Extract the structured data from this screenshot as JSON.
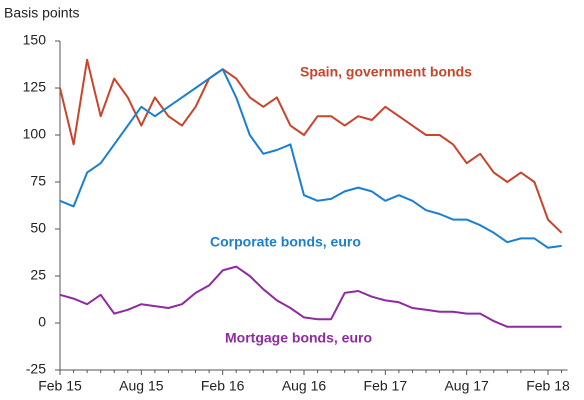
{
  "chart_data": {
    "type": "line",
    "y_label": "Basis points",
    "categories": [
      "Feb 15",
      null,
      null,
      null,
      null,
      null,
      "Aug 15",
      null,
      null,
      null,
      null,
      null,
      "Feb 16",
      null,
      null,
      null,
      null,
      null,
      "Aug 16",
      null,
      null,
      null,
      null,
      null,
      "Feb 17",
      null,
      null,
      null,
      null,
      null,
      "Aug 17",
      null,
      null,
      null,
      null,
      null,
      "Feb 18",
      null
    ],
    "series": [
      {
        "name": "Spain, government bonds",
        "color": "#c8442a",
        "values": [
          125,
          95,
          140,
          110,
          130,
          120,
          105,
          120,
          110,
          105,
          115,
          130,
          135,
          130,
          120,
          115,
          120,
          105,
          100,
          110,
          110,
          105,
          110,
          108,
          115,
          110,
          105,
          100,
          100,
          95,
          85,
          90,
          80,
          75,
          80,
          75,
          55,
          48
        ]
      },
      {
        "name": "Corporate bonds, euro",
        "color": "#1a7fd1",
        "values": [
          65,
          62,
          80,
          85,
          95,
          105,
          115,
          110,
          115,
          120,
          125,
          130,
          135,
          120,
          100,
          90,
          92,
          95,
          68,
          65,
          66,
          70,
          72,
          70,
          65,
          68,
          65,
          60,
          58,
          55,
          55,
          52,
          48,
          43,
          45,
          45,
          40,
          41
        ]
      },
      {
        "name": "Mortgage bonds, euro",
        "color": "#8e2ba0",
        "values": [
          15,
          13,
          10,
          15,
          5,
          7,
          10,
          9,
          8,
          10,
          16,
          20,
          28,
          30,
          25,
          18,
          12,
          8,
          3,
          2,
          2,
          16,
          17,
          14,
          12,
          11,
          8,
          7,
          6,
          6,
          5,
          5,
          1,
          -2,
          -2,
          -2,
          -2,
          -2
        ]
      }
    ],
    "ylim": [
      -25,
      150
    ],
    "yticks": [
      -25,
      0,
      25,
      50,
      75,
      100,
      125,
      150
    ]
  }
}
